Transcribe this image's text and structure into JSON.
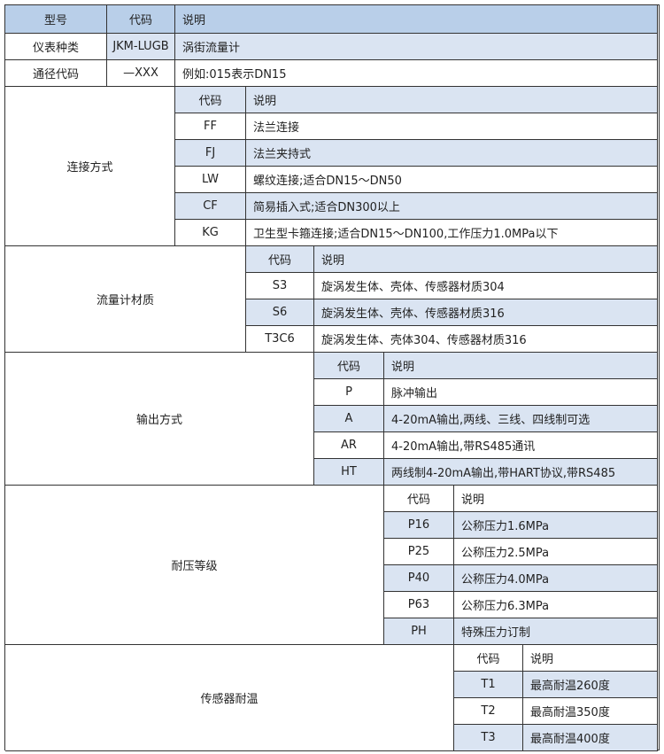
{
  "colors": {
    "header": "#b9cfe9",
    "shade": "#dae4f2",
    "border": "#333333"
  },
  "top": {
    "headers": [
      "型号",
      "代码",
      "说明"
    ],
    "rows": [
      [
        "仪表种类",
        "JKM-LUGB",
        "涡街流量计"
      ],
      [
        "通径代码",
        "—XXX",
        "例如:015表示DN15"
      ]
    ]
  },
  "sections": [
    {
      "label": "连接方式",
      "code_header": "代码",
      "desc_header": "说明",
      "rows": [
        [
          "FF",
          "法兰连接"
        ],
        [
          "FJ",
          "法兰夹持式"
        ],
        [
          "LW",
          "螺纹连接;适合DN15～DN50"
        ],
        [
          "CF",
          "简易插入式;适合DN300以上"
        ],
        [
          "KG",
          "卫生型卡箍连接;适合DN15～DN100,工作压力1.0MPa以下"
        ]
      ]
    },
    {
      "label": "流量计材质",
      "code_header": "代码",
      "desc_header": "说明",
      "rows": [
        [
          "S3",
          "旋涡发生体、壳体、传感器材质304"
        ],
        [
          "S6",
          "旋涡发生体、壳体、传感器材质316"
        ],
        [
          "T3C6",
          "旋涡发生体、壳体304、传感器材质316"
        ]
      ]
    },
    {
      "label": "输出方式",
      "code_header": "代码",
      "desc_header": "说明",
      "rows": [
        [
          "P",
          "脉冲输出"
        ],
        [
          "A",
          "4-20mA输出,两线、三线、四线制可选"
        ],
        [
          "AR",
          "4-20mA输出,带RS485通讯"
        ],
        [
          "HT",
          "两线制4-20mA输出,带HART协议,带RS485"
        ]
      ]
    },
    {
      "label": "耐压等级",
      "code_header": "代码",
      "desc_header": "说明",
      "rows": [
        [
          "P16",
          "公称压力1.6MPa"
        ],
        [
          "P25",
          "公称压力2.5MPa"
        ],
        [
          "P40",
          "公称压力4.0MPa"
        ],
        [
          "P63",
          "公称压力6.3MPa"
        ],
        [
          "PH",
          "特殊压力订制"
        ]
      ]
    },
    {
      "label": "传感器耐温",
      "code_header": "代码",
      "desc_header": "说明",
      "rows": [
        [
          "T1",
          "最高耐温260度"
        ],
        [
          "T2",
          "最高耐温350度"
        ],
        [
          "T3",
          "最高耐温400度"
        ]
      ]
    }
  ]
}
